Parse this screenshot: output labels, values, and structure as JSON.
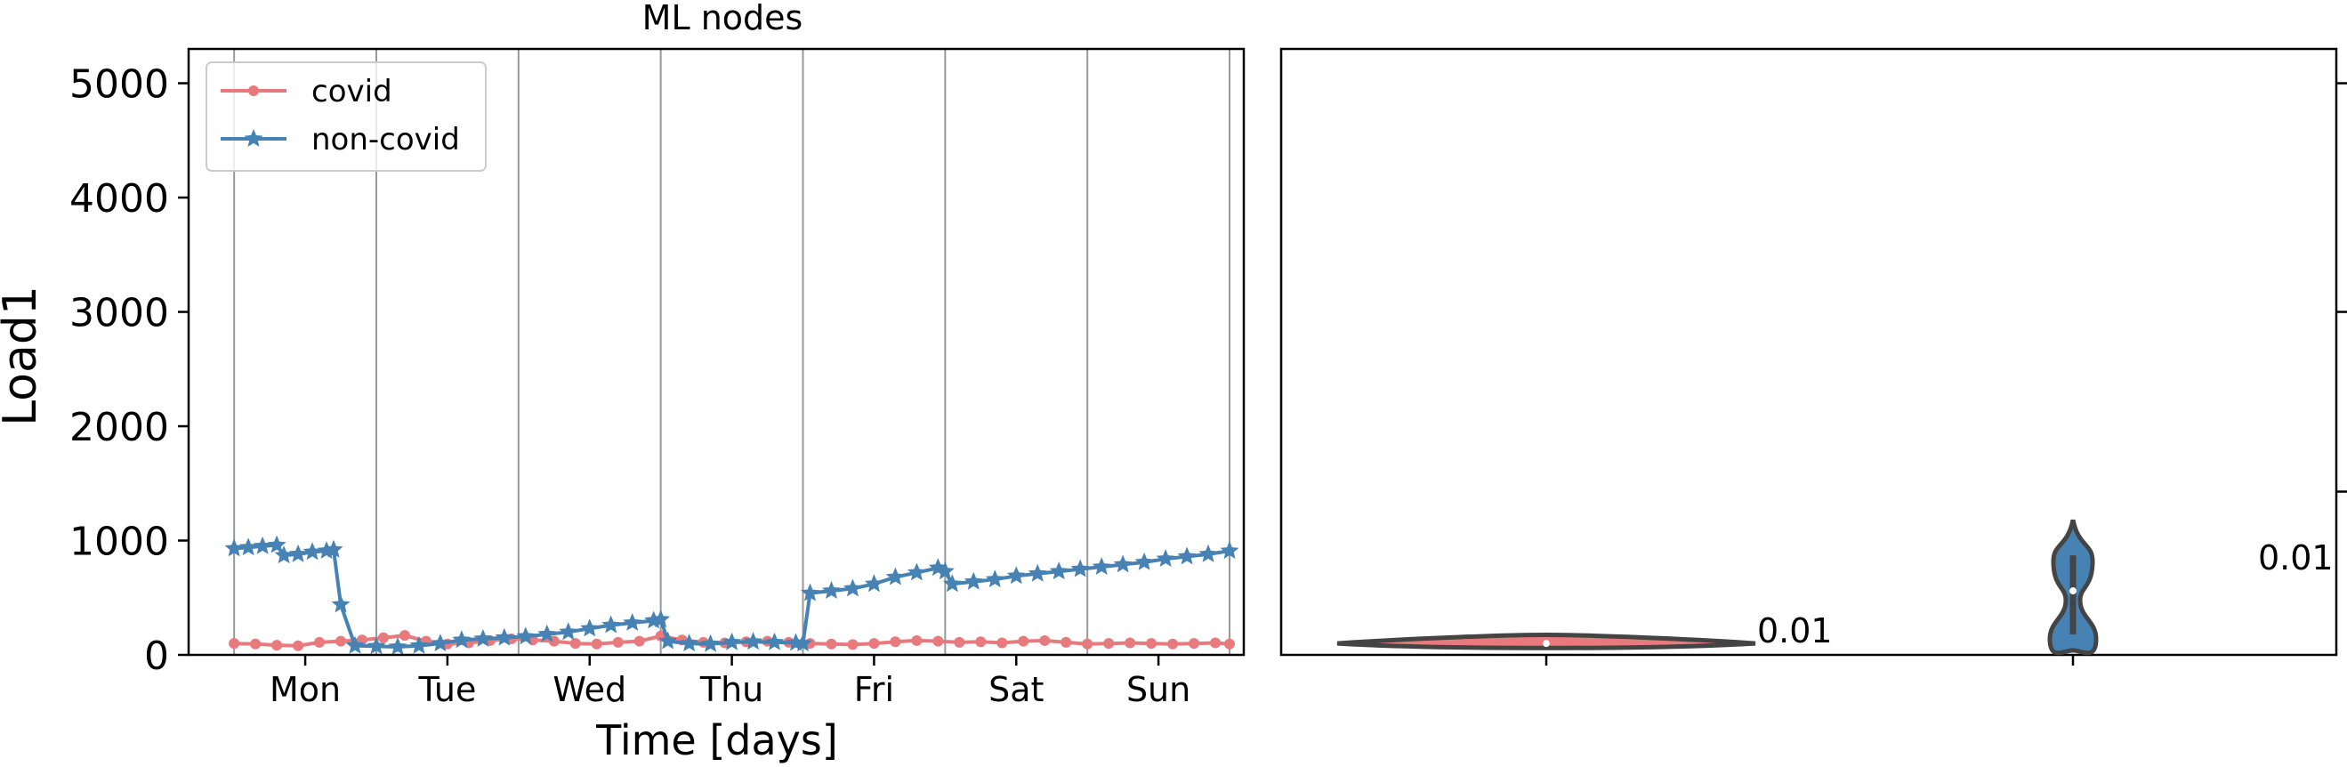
{
  "chart_data": [
    {
      "type": "line",
      "title": "ML nodes",
      "xlabel": "Time [days]",
      "ylabel": "Load1",
      "ylim": [
        0,
        5300
      ],
      "yticks": [
        0,
        1000,
        2000,
        3000,
        4000,
        5000
      ],
      "x_categories": [
        "Mon",
        "Tue",
        "Wed",
        "Thu",
        "Fri",
        "Sat",
        "Sun"
      ],
      "day_boundaries": [
        0,
        1,
        2,
        3,
        4,
        5,
        6,
        7
      ],
      "xlim": [
        -0.32,
        7.1
      ],
      "grid": "vertical day lines",
      "legend_placement": "top-left",
      "series": [
        {
          "name": "covid",
          "color": "#e8797d",
          "marker": "circle",
          "x": [
            0,
            0.15,
            0.3,
            0.45,
            0.6,
            0.75,
            0.9,
            1.05,
            1.2,
            1.35,
            1.5,
            1.65,
            1.8,
            1.95,
            2.1,
            2.25,
            2.4,
            2.55,
            2.7,
            2.85,
            3.0,
            3.15,
            3.3,
            3.45,
            3.6,
            3.75,
            3.9,
            4.05,
            4.2,
            4.35,
            4.5,
            4.65,
            4.8,
            4.95,
            5.1,
            5.25,
            5.4,
            5.55,
            5.7,
            5.85,
            6.0,
            6.15,
            6.3,
            6.45,
            6.6,
            6.75,
            6.9,
            7.0
          ],
          "y": [
            100,
            95,
            85,
            80,
            110,
            120,
            130,
            150,
            170,
            120,
            95,
            105,
            125,
            140,
            130,
            120,
            100,
            95,
            110,
            120,
            165,
            130,
            110,
            105,
            115,
            120,
            110,
            100,
            95,
            90,
            100,
            115,
            125,
            120,
            110,
            115,
            105,
            120,
            125,
            110,
            95,
            100,
            105,
            100,
            95,
            100,
            105,
            95
          ]
        },
        {
          "name": "non-covid",
          "color": "#4682b4",
          "marker": "star",
          "x": [
            0,
            0.1,
            0.2,
            0.3,
            0.35,
            0.45,
            0.55,
            0.65,
            0.7,
            0.75,
            0.85,
            1.0,
            1.15,
            1.3,
            1.45,
            1.6,
            1.75,
            1.9,
            2.05,
            2.2,
            2.35,
            2.5,
            2.65,
            2.8,
            2.95,
            3.0,
            3.05,
            3.2,
            3.35,
            3.5,
            3.65,
            3.8,
            3.95,
            4.0,
            4.05,
            4.2,
            4.35,
            4.5,
            4.65,
            4.8,
            4.95,
            5.0,
            5.05,
            5.2,
            5.35,
            5.5,
            5.65,
            5.8,
            5.95,
            6.1,
            6.25,
            6.4,
            6.55,
            6.7,
            6.85,
            7.0
          ],
          "y": [
            930,
            940,
            950,
            960,
            870,
            880,
            900,
            910,
            920,
            440,
            80,
            75,
            70,
            80,
            100,
            130,
            140,
            150,
            160,
            180,
            200,
            230,
            260,
            280,
            300,
            310,
            120,
            100,
            95,
            110,
            115,
            110,
            105,
            100,
            540,
            560,
            580,
            620,
            680,
            720,
            760,
            730,
            620,
            640,
            660,
            690,
            710,
            730,
            750,
            770,
            790,
            810,
            840,
            860,
            880,
            910
          ]
        }
      ]
    },
    {
      "type": "violin",
      "categories": [
        "covid",
        "non-covid"
      ],
      "ylim": [
        0,
        5300
      ],
      "annotations": [
        "0.01",
        "0.01"
      ],
      "series": [
        {
          "name": "covid",
          "color": "#e8797d",
          "median": 100,
          "q1": 90,
          "q3": 115,
          "min": 60,
          "max": 175
        },
        {
          "name": "non-covid",
          "color": "#4682b4",
          "median": 560,
          "q1": 180,
          "q3": 870,
          "min": 40,
          "max": 1180
        }
      ]
    }
  ]
}
